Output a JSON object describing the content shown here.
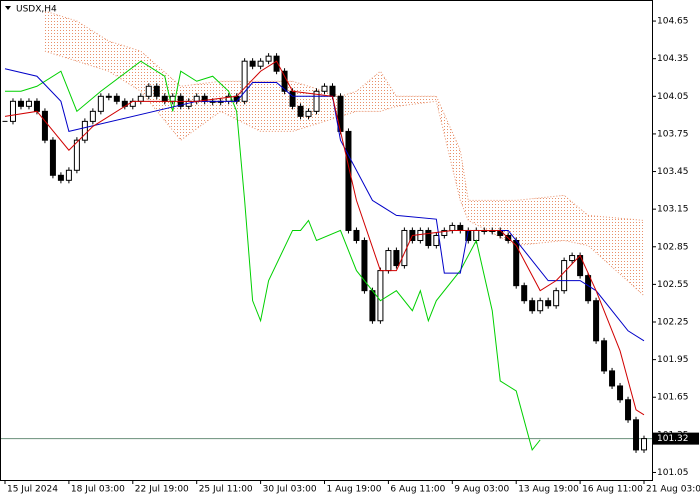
{
  "chart_data": {
    "type": "candlestick",
    "title": "USDX,H4",
    "xlim": [
      -0.5,
      81
    ],
    "ylim": [
      100.99,
      104.81
    ],
    "yticks": [
      104.65,
      104.35,
      104.05,
      103.75,
      103.45,
      103.15,
      102.85,
      102.55,
      102.25,
      101.95,
      101.65,
      101.35,
      101.05
    ],
    "xticks": [
      {
        "value": 0,
        "label": "15 Jul 2024"
      },
      {
        "value": 8,
        "label": "18 Jul 03:00"
      },
      {
        "value": 16,
        "label": "22 Jul 19:00"
      },
      {
        "value": 24,
        "label": "25 Jul 11:00"
      },
      {
        "value": 32,
        "label": "30 Jul 03:00"
      },
      {
        "value": 40,
        "label": "1 Aug 19:00"
      },
      {
        "value": 48,
        "label": "6 Aug 11:00"
      },
      {
        "value": 56,
        "label": "9 Aug 03:00"
      },
      {
        "value": 64,
        "label": "13 Aug 19:00"
      },
      {
        "value": 72,
        "label": "16 Aug 11:00"
      },
      {
        "value": 80,
        "label": "21 Aug 03:00"
      }
    ],
    "last_price": 101.32,
    "candle_color": "#000000",
    "close": [
      103.85,
      104.01,
      103.97,
      104.01,
      103.93,
      103.7,
      103.42,
      103.38,
      103.46,
      103.7,
      103.85,
      103.93,
      104.05,
      104.05,
      104.01,
      103.97,
      104.01,
      104.05,
      104.13,
      104.05,
      104.01,
      104.05,
      103.97,
      104.01,
      104.05,
      104.01,
      104.01,
      104.01,
      104.05,
      104.01,
      104.33,
      104.29,
      104.33,
      104.37,
      104.25,
      104.09,
      103.97,
      103.89,
      103.93,
      104.09,
      104.13,
      104.05,
      103.77,
      102.98,
      102.9,
      102.5,
      102.26,
      102.66,
      102.82,
      102.7,
      102.98,
      102.9,
      102.98,
      102.86,
      102.94,
      102.98,
      103.02,
      102.98,
      102.9,
      102.98,
      102.98,
      102.98,
      102.94,
      102.9,
      102.54,
      102.42,
      102.34,
      102.42,
      102.38,
      102.5,
      102.74,
      102.78,
      102.62,
      102.42,
      102.1,
      101.86,
      101.74,
      101.63,
      101.47,
      101.23,
      101.32
    ],
    "cloud": {
      "color": "#e8906a",
      "x": [
        5,
        9,
        13,
        17,
        22,
        27,
        32,
        36,
        42,
        44,
        47,
        49,
        54,
        57,
        58,
        64,
        70,
        73,
        80
      ],
      "upper": [
        104.73,
        104.65,
        104.49,
        104.41,
        104.13,
        104.17,
        104.17,
        104.17,
        104.05,
        104.09,
        104.25,
        104.05,
        104.05,
        103.62,
        103.22,
        103.22,
        103.26,
        103.1,
        103.06
      ],
      "lower": [
        104.41,
        104.33,
        104.25,
        104.09,
        103.7,
        103.93,
        103.77,
        103.77,
        103.89,
        103.93,
        103.93,
        103.97,
        104.01,
        103.22,
        103.06,
        102.86,
        102.9,
        102.86,
        102.46
      ]
    },
    "series": [
      {
        "color": "#00d000",
        "x": [
          0,
          2,
          4,
          7,
          9,
          12,
          17,
          20,
          21,
          22,
          24,
          26,
          28,
          29,
          30,
          31,
          32,
          33,
          36,
          37,
          38,
          39,
          42,
          44,
          46,
          47,
          49,
          51,
          52,
          53,
          54,
          57,
          59,
          61,
          62,
          64,
          66,
          67
        ],
        "values": [
          104.09,
          104.09,
          104.13,
          104.25,
          103.93,
          104.09,
          104.33,
          104.21,
          103.93,
          104.25,
          104.17,
          104.21,
          104.09,
          103.93,
          103.22,
          102.42,
          102.26,
          102.58,
          102.98,
          102.98,
          103.06,
          102.9,
          102.98,
          102.66,
          102.5,
          102.42,
          102.5,
          102.34,
          102.5,
          102.26,
          102.42,
          102.66,
          102.9,
          102.34,
          101.78,
          101.7,
          101.23,
          101.31
        ]
      },
      {
        "color": "#0000c8",
        "x": [
          0,
          4,
          7,
          8,
          24,
          29,
          31,
          34,
          36,
          41,
          42,
          46,
          49,
          54,
          55,
          57,
          58,
          63,
          65,
          68,
          72,
          74,
          78,
          80
        ],
        "values": [
          104.27,
          104.21,
          104.01,
          103.77,
          104.01,
          104.01,
          104.16,
          104.16,
          104.05,
          104.05,
          103.7,
          103.22,
          103.1,
          103.07,
          102.64,
          102.64,
          102.98,
          102.98,
          102.82,
          102.58,
          102.58,
          102.5,
          102.18,
          102.1
        ]
      },
      {
        "color": "#d00000",
        "x": [
          0,
          4,
          8,
          11,
          16,
          24,
          29,
          32,
          34,
          36,
          41,
          42,
          44,
          47,
          49,
          51,
          56,
          62,
          64,
          67,
          69,
          72,
          74,
          77,
          79,
          80
        ],
        "values": [
          103.89,
          103.93,
          103.62,
          103.81,
          104.01,
          104.01,
          104.05,
          104.25,
          104.33,
          104.09,
          104.05,
          103.77,
          103.22,
          102.66,
          102.66,
          102.94,
          102.98,
          102.98,
          102.86,
          102.5,
          102.58,
          102.78,
          102.5,
          102.02,
          101.55,
          101.51
        ]
      }
    ]
  }
}
